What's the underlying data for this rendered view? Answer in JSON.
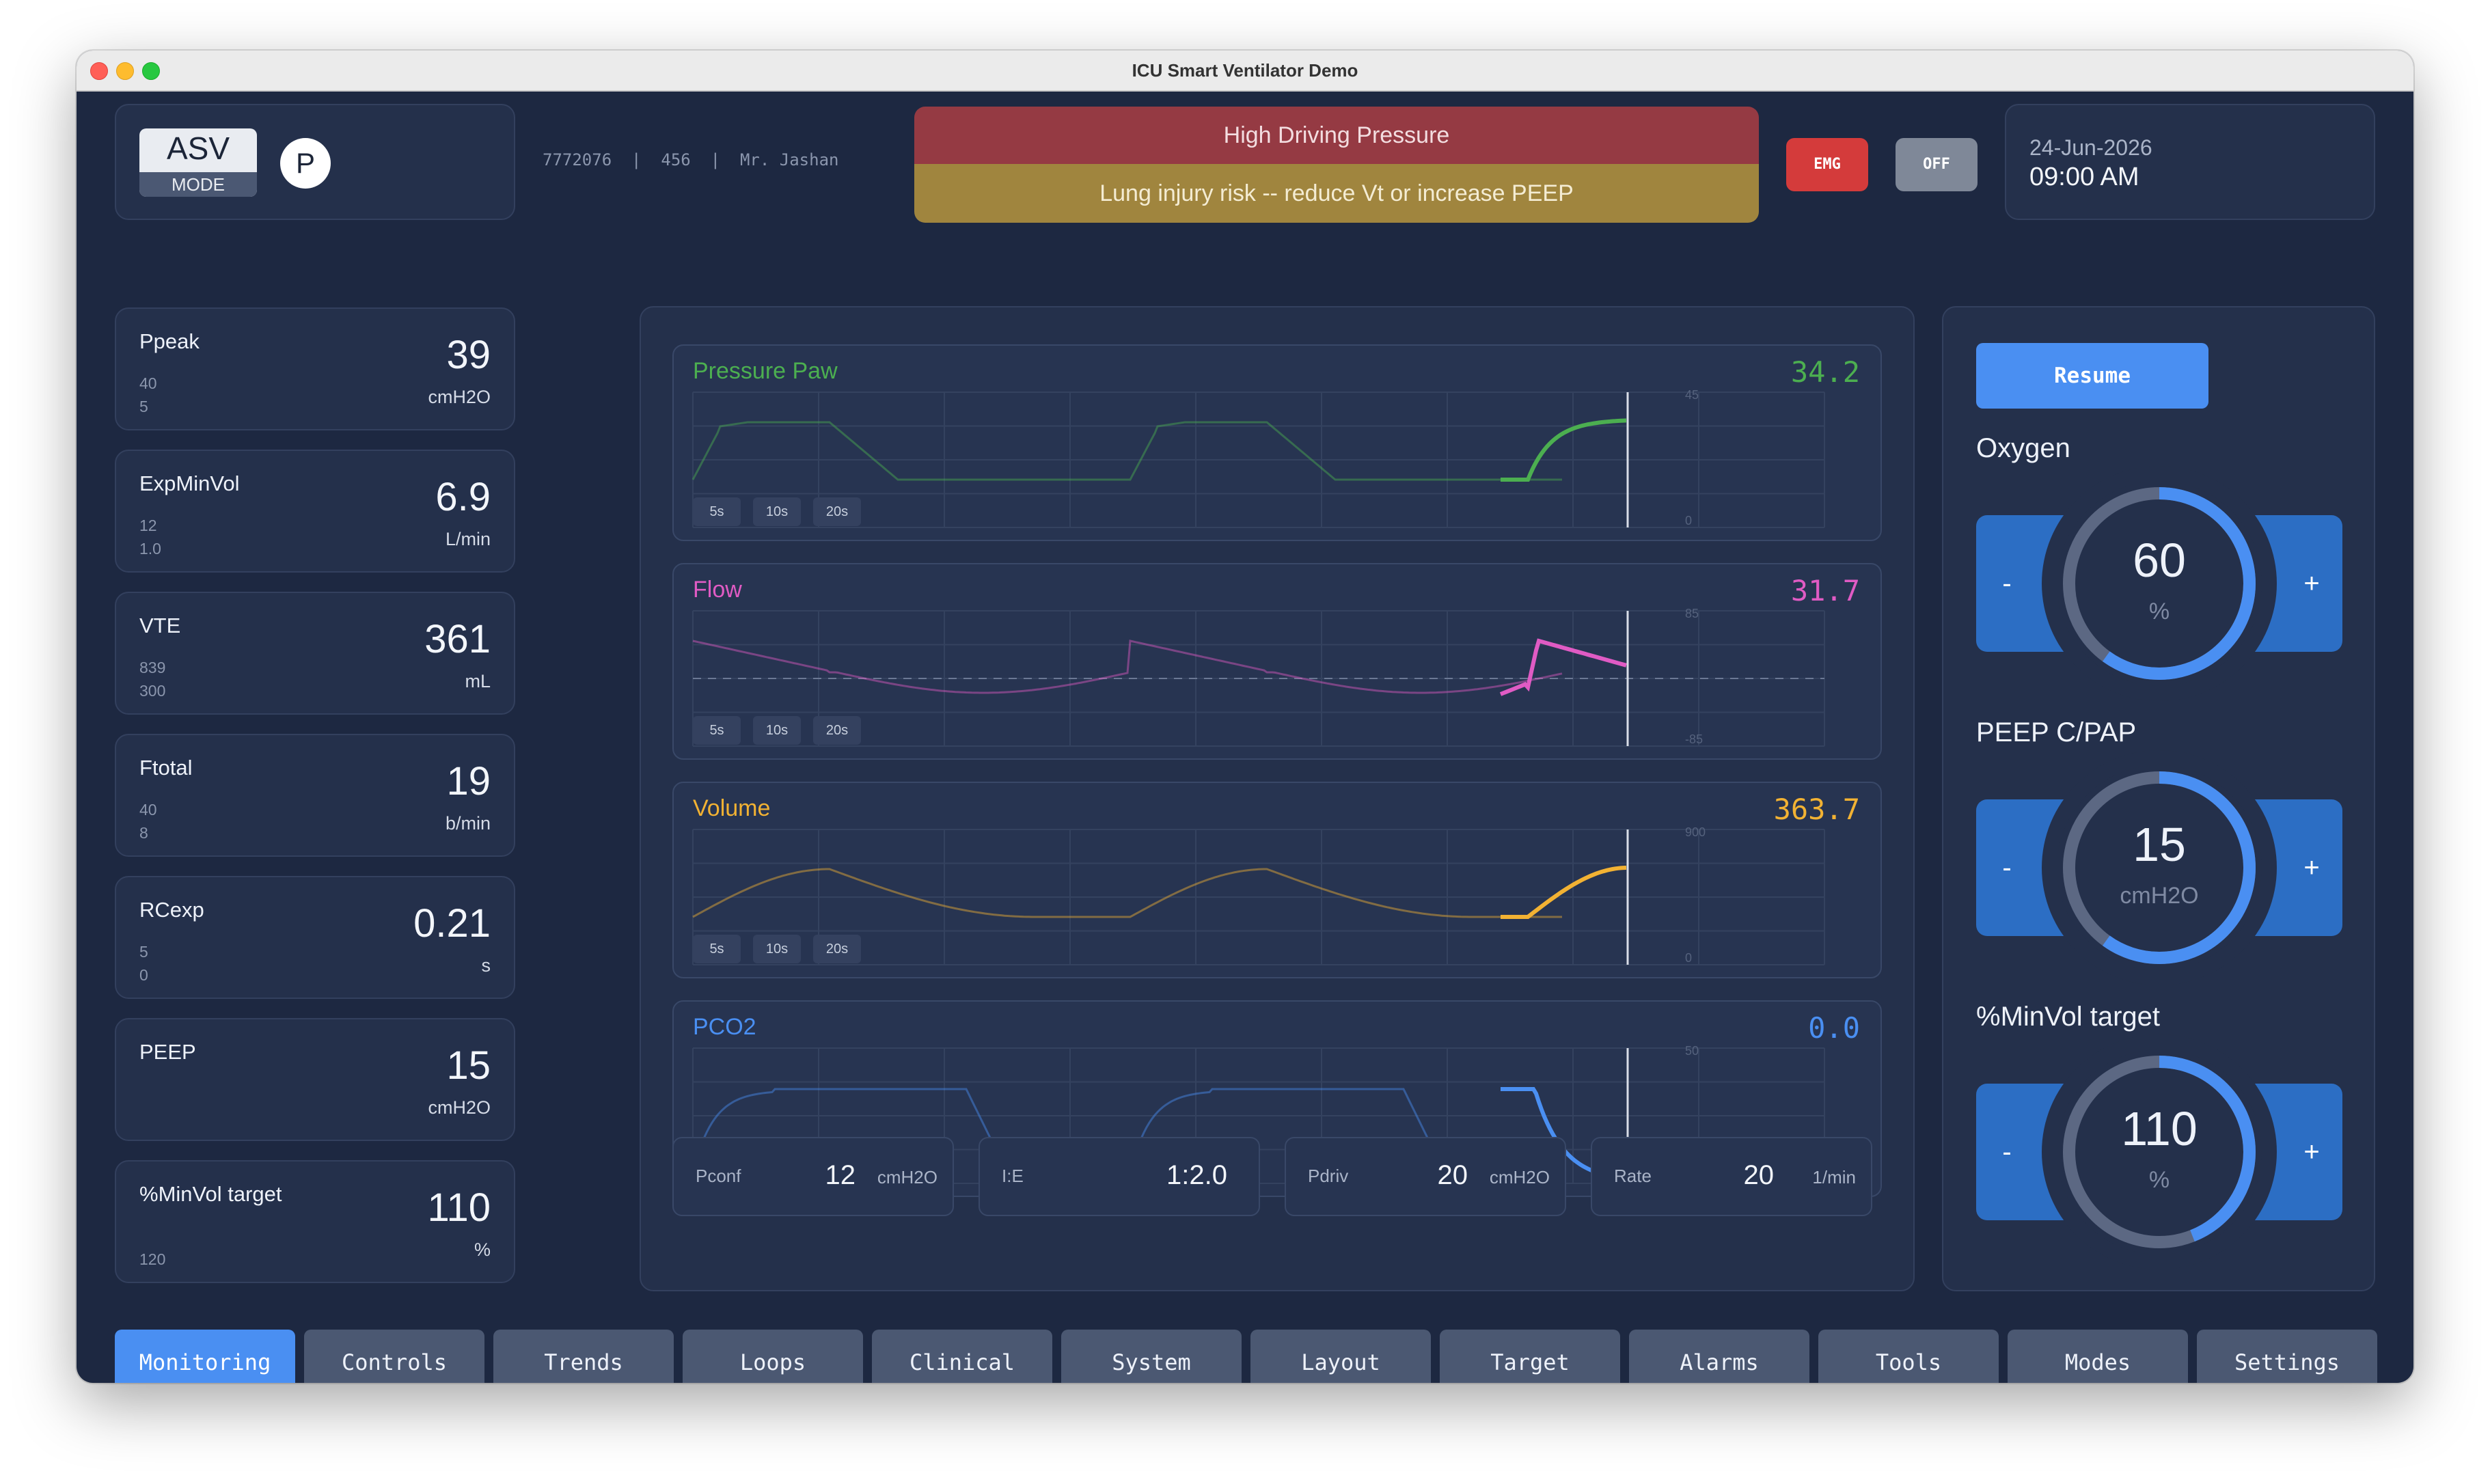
{
  "window": {
    "title": "ICU Smart Ventilator Demo"
  },
  "header": {
    "mode_name": "ASV",
    "mode_label": "MODE",
    "badge": "P",
    "patient": "7772076  |  456  |  Mr. Jashan",
    "alarm_title": "High Driving Pressure",
    "alarm_message": "Lung injury risk -- reduce Vt or increase PEEP",
    "emg_label": "EMG",
    "off_label": "OFF",
    "date": "24-Jun-2026",
    "time": "09:00 AM"
  },
  "metrics": [
    {
      "label": "Ppeak",
      "value": "39",
      "unit": "cmH2O",
      "hi": "40",
      "lo": "5"
    },
    {
      "label": "ExpMinVol",
      "value": "6.9",
      "unit": "L/min",
      "hi": "12",
      "lo": "1.0"
    },
    {
      "label": "VTE",
      "value": "361",
      "unit": "mL",
      "hi": "839",
      "lo": "300"
    },
    {
      "label": "Ftotal",
      "value": "19",
      "unit": "b/min",
      "hi": "40",
      "lo": "8"
    },
    {
      "label": "RCexp",
      "value": "0.21",
      "unit": "s",
      "hi": "5",
      "lo": "0"
    },
    {
      "label": "PEEP",
      "value": "15",
      "unit": "cmH2O",
      "hi": "",
      "lo": ""
    },
    {
      "label": "%MinVol target",
      "value": "110",
      "unit": "%",
      "hi": "",
      "lo": "120"
    }
  ],
  "waves": [
    {
      "name": "Pressure Paw",
      "value": "34.2",
      "color": "#4caf50",
      "max": "45",
      "min": "0"
    },
    {
      "name": "Flow",
      "value": "31.7",
      "color": "#e05bc4",
      "max": "85",
      "min": "-85"
    },
    {
      "name": "Volume",
      "value": "363.7",
      "color": "#f2b233",
      "max": "900",
      "min": "0"
    },
    {
      "name": "PCO2",
      "value": "0.0",
      "color": "#4a8ff2",
      "max": "50",
      "min": "0"
    }
  ],
  "timebase": [
    "5s",
    "10s",
    "20s"
  ],
  "params": [
    {
      "label": "Pconf",
      "value": "12",
      "unit": "cmH2O"
    },
    {
      "label": "I:E",
      "value": "1:2.0",
      "unit": ""
    },
    {
      "label": "Pdriv",
      "value": "20",
      "unit": "cmH2O"
    },
    {
      "label": "Rate",
      "value": "20",
      "unit": "1/min"
    }
  ],
  "controls": {
    "resume_label": "Resume",
    "minus": "-",
    "plus": "+",
    "items": [
      {
        "label": "Oxygen",
        "value": "60",
        "unit": "%",
        "level": 0.6
      },
      {
        "label": "PEEP C/PAP",
        "value": "15",
        "unit": "cmH2O",
        "level": 0.6
      },
      {
        "label": "%MinVol target",
        "value": "110",
        "unit": "%",
        "level": 0.44
      }
    ]
  },
  "nav": [
    "Monitoring",
    "Controls",
    "Trends",
    "Loops",
    "Clinical",
    "System",
    "Layout",
    "Target",
    "Alarms",
    "Tools",
    "Modes",
    "Settings"
  ],
  "nav_active": 0
}
